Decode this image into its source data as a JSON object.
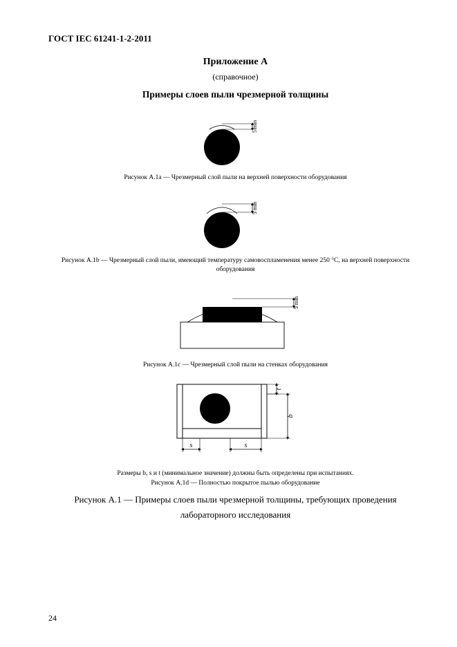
{
  "doc_code": "ГОСТ IEC 61241-1-2-2011",
  "appendix_title": "Приложение А",
  "appendix_sub": "(справочное)",
  "section_title": "Примеры слоев пыли чрезмерной толщины",
  "fig_a": {
    "label": "5 min",
    "caption": "Рисунок A.1a — Чрезмерный слой пыли на верхней поверхности оборудования",
    "circle_r": 26,
    "arc_h": 8,
    "stroke": "#000000",
    "fill": "#000000",
    "label_fontsize": 8
  },
  "fig_b": {
    "label": "5 min",
    "caption": "Рисунок A.1b — Чрезмерный слой пыли, имеющий температуру самовоспламенения менее 250 °С, на верхней поверхности оборудования",
    "circle_r": 26,
    "arc_h": 12,
    "stroke": "#000000",
    "fill": "#000000",
    "label_fontsize": 8
  },
  "fig_c": {
    "label": "5 min",
    "caption": "Рисунок A.1c — Чрезмерный слой пыли на стенках оборудования",
    "rect_w": 86,
    "rect_h": 22,
    "base_w": 150,
    "base_h": 38,
    "stroke": "#000000",
    "fill": "#000000",
    "label_fontsize": 8
  },
  "fig_d": {
    "label_s": "s",
    "label_b": "b",
    "label_t": "t",
    "note": "Размеры b, s и t (минимальное значение) должны быть определены при испытаниях.",
    "caption": "Рисунок A.1d — Полностью покрытое пылью оборудование",
    "outer_w": 130,
    "outer_h": 78,
    "circle_r": 22,
    "stroke": "#000000",
    "fill": "#000000",
    "dim_fontsize": 10
  },
  "final_caption_line1": "Рисунок А.1 — Примеры слоев пыли чрезмерной толщины,  требующих проведения",
  "final_caption_line2": "лабораторного исследования",
  "page_number": "24"
}
